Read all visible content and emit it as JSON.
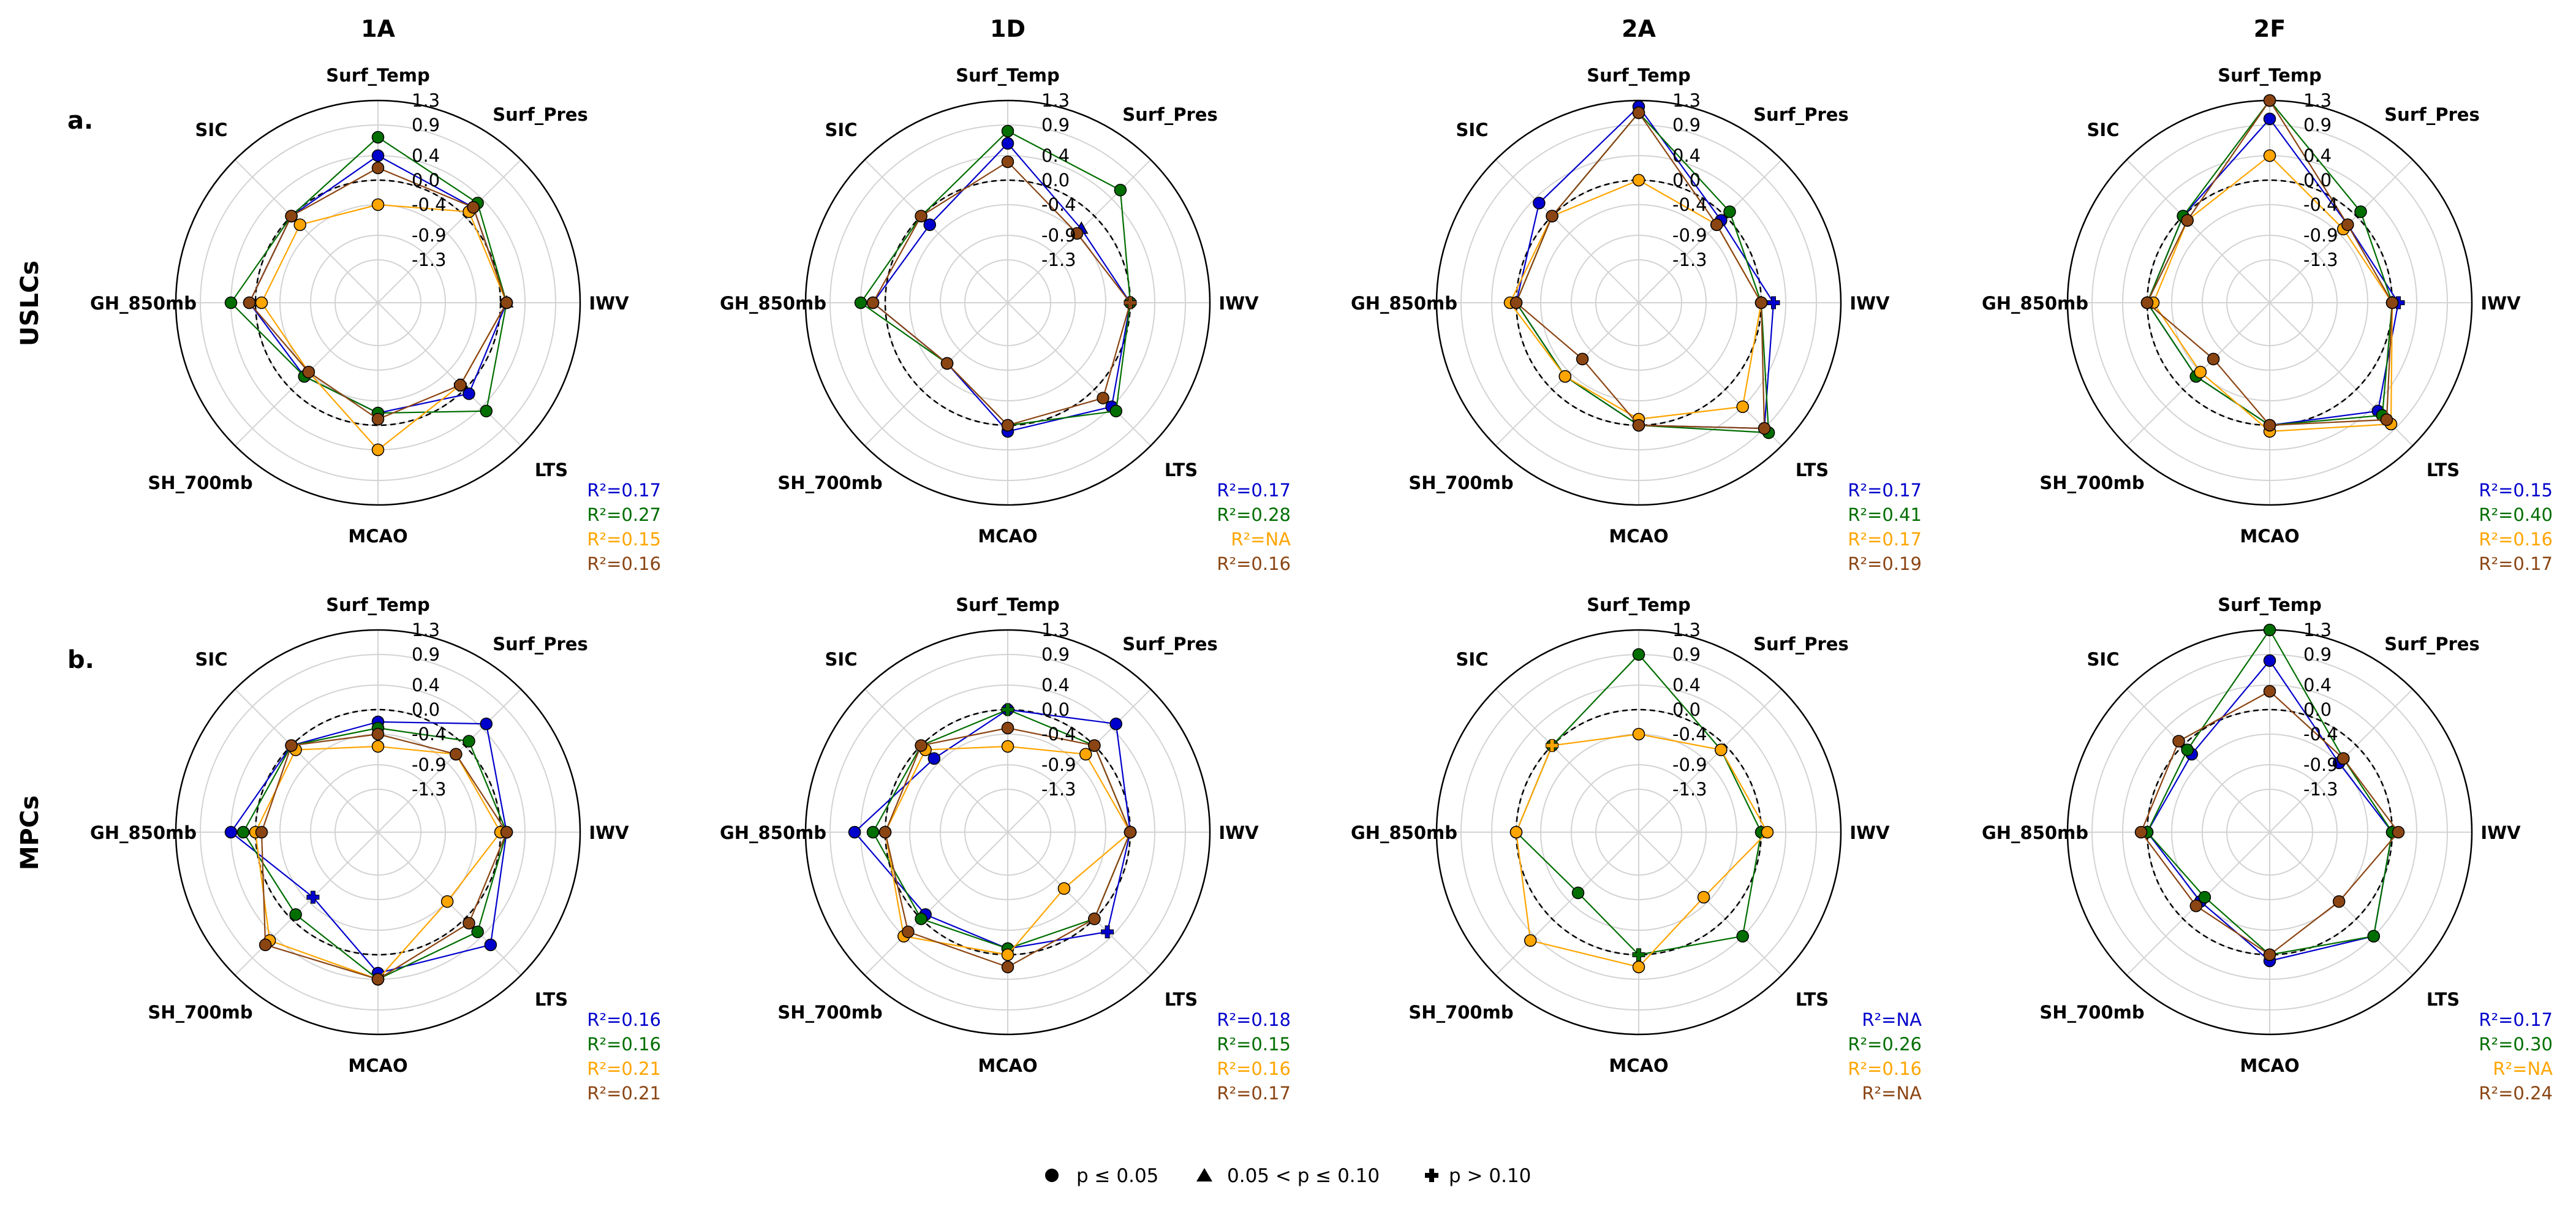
{
  "figure": {
    "columns": [
      "1A",
      "1D",
      "2A",
      "2F"
    ],
    "rows": [
      {
        "panel_label": "a.",
        "row_label": "USLCs"
      },
      {
        "panel_label": "b.",
        "row_label": "MPCs"
      }
    ],
    "legend": [
      {
        "marker": "circle",
        "label": "p ≤ 0.05"
      },
      {
        "marker": "triangle",
        "label": "0.05 < p ≤ 0.10"
      },
      {
        "marker": "plus",
        "label": "p > 0.10"
      }
    ]
  },
  "chart_data": [
    {
      "type": "radar",
      "row": 0,
      "col": 0,
      "title": "1A",
      "axes": [
        "Surf_Temp",
        "Surf_Pres",
        "IWV",
        "LTS",
        "MCAO",
        "SH_700mb",
        "GH_850mb",
        "SIC"
      ],
      "rlim": [
        -2.0,
        1.3
      ],
      "rticks": [
        1.3,
        0.9,
        0.4,
        0.0,
        -0.4,
        -0.9,
        -1.3
      ],
      "reference_ring": 0.0,
      "colors": [
        "#0000cc",
        "#006e00",
        "#ffa500",
        "#8b4513"
      ],
      "series": [
        {
          "values": [
            0.4,
            0.2,
            0.1,
            0.1,
            -0.2,
            -0.3,
            0.1,
            0.0
          ],
          "markers": [
            "circle",
            "circle",
            "triangle",
            "circle",
            "circle",
            "circle",
            "circle",
            "circle"
          ]
        },
        {
          "values": [
            0.7,
            0.3,
            0.1,
            0.5,
            -0.2,
            -0.3,
            0.4,
            0.0
          ],
          "markers": [
            "circle",
            "circle",
            "circle",
            "circle",
            "circle",
            "circle",
            "circle",
            "circle"
          ]
        },
        {
          "values": [
            -0.4,
            0.1,
            0.1,
            -0.1,
            0.4,
            -0.4,
            -0.1,
            -0.2
          ],
          "markers": [
            "circle",
            "circle",
            "circle",
            "plus",
            "circle",
            "circle",
            "circle",
            "circle"
          ]
        },
        {
          "values": [
            0.2,
            0.2,
            0.1,
            -0.1,
            -0.1,
            -0.4,
            0.1,
            0.0
          ],
          "markers": [
            "circle",
            "circle",
            "circle",
            "circle",
            "circle",
            "circle",
            "circle",
            "circle"
          ]
        }
      ],
      "r2": [
        "R²=0.17",
        "R²=0.27",
        "R²=0.15",
        "R²=0.16"
      ]
    },
    {
      "type": "radar",
      "row": 0,
      "col": 1,
      "title": "1D",
      "axes": [
        "Surf_Temp",
        "Surf_Pres",
        "IWV",
        "LTS",
        "MCAO",
        "SH_700mb",
        "GH_850mb",
        "SIC"
      ],
      "rlim": [
        -2.0,
        1.3
      ],
      "rticks": [
        1.3,
        0.9,
        0.4,
        0.0,
        -0.4,
        -0.9,
        -1.3
      ],
      "reference_ring": 0.0,
      "colors": [
        "#0000cc",
        "#006e00",
        "#ffa500",
        "#8b4513"
      ],
      "series": [
        {
          "values": [
            0.6,
            -0.3,
            0.0,
            0.4,
            0.1,
            -0.6,
            0.2,
            -0.2
          ],
          "markers": [
            "circle",
            "triangle",
            "circle",
            "circle",
            "circle",
            "circle",
            "circle",
            "circle"
          ]
        },
        {
          "values": [
            0.8,
            0.6,
            0.0,
            0.5,
            0.0,
            -0.6,
            0.4,
            0.0
          ],
          "markers": [
            "circle",
            "circle",
            "circle",
            "circle",
            "circle",
            "circle",
            "circle",
            "circle"
          ]
        },
        null,
        {
          "values": [
            0.3,
            -0.4,
            0.0,
            0.2,
            0.0,
            -0.6,
            0.2,
            0.0
          ],
          "markers": [
            "circle",
            "circle",
            "plus",
            "circle",
            "circle",
            "circle",
            "circle",
            "circle"
          ]
        }
      ],
      "r2": [
        "R²=0.17",
        "R²=0.28",
        "R²=NA",
        "R²=0.16"
      ]
    },
    {
      "type": "radar",
      "row": 0,
      "col": 2,
      "title": "2A",
      "axes": [
        "Surf_Temp",
        "Surf_Pres",
        "IWV",
        "LTS",
        "MCAO",
        "SH_700mb",
        "GH_850mb",
        "SIC"
      ],
      "rlim": [
        -2.0,
        1.3
      ],
      "rticks": [
        1.3,
        0.9,
        0.4,
        0.0,
        -0.4,
        -0.9,
        -1.3
      ],
      "reference_ring": 0.0,
      "colors": [
        "#0000cc",
        "#006e00",
        "#ffa500",
        "#8b4513"
      ],
      "series": [
        {
          "values": [
            1.2,
            -0.1,
            0.2,
            0.9,
            0.0,
            -0.3,
            0.0,
            0.3
          ],
          "markers": [
            "circle",
            "circle",
            "plus",
            "circle",
            "circle",
            "circle",
            "circle",
            "circle"
          ]
        },
        {
          "values": [
            1.1,
            0.1,
            0.0,
            1.0,
            0.0,
            -0.3,
            0.0,
            0.0
          ],
          "markers": [
            "circle",
            "circle",
            "circle",
            "circle",
            "circle",
            "circle",
            "circle",
            "circle"
          ]
        },
        {
          "values": [
            0.0,
            -0.2,
            0.0,
            0.4,
            -0.1,
            -0.3,
            0.1,
            0.0
          ],
          "markers": [
            "circle",
            "circle",
            "circle",
            "circle",
            "circle",
            "circle",
            "circle",
            "circle"
          ]
        },
        {
          "values": [
            1.1,
            -0.2,
            0.0,
            0.9,
            0.0,
            -0.7,
            0.0,
            0.0
          ],
          "markers": [
            "circle",
            "circle",
            "circle",
            "circle",
            "circle",
            "circle",
            "circle",
            "circle"
          ]
        }
      ],
      "r2": [
        "R²=0.17",
        "R²=0.41",
        "R²=0.17",
        "R²=0.19"
      ]
    },
    {
      "type": "radar",
      "row": 0,
      "col": 3,
      "title": "2F",
      "axes": [
        "Surf_Temp",
        "Surf_Pres",
        "IWV",
        "LTS",
        "MCAO",
        "SH_700mb",
        "GH_850mb",
        "SIC"
      ],
      "rlim": [
        -2.0,
        1.3
      ],
      "rticks": [
        1.3,
        0.9,
        0.4,
        0.0,
        -0.4,
        -0.9,
        -1.3
      ],
      "reference_ring": 0.0,
      "colors": [
        "#0000cc",
        "#006e00",
        "#ffa500",
        "#8b4513"
      ],
      "series": [
        {
          "values": [
            1.0,
            -0.2,
            0.1,
            0.5,
            0.0,
            -0.3,
            0.0,
            0.0
          ],
          "markers": [
            "circle",
            "circle",
            "plus",
            "circle",
            "circle",
            "circle",
            "circle",
            "circle"
          ]
        },
        {
          "values": [
            1.3,
            0.1,
            0.0,
            0.6,
            0.0,
            -0.3,
            0.0,
            0.0
          ],
          "markers": [
            "circle",
            "circle",
            "circle",
            "circle",
            "circle",
            "circle",
            "circle",
            "circle"
          ]
        },
        {
          "values": [
            0.4,
            -0.3,
            0.0,
            0.8,
            0.1,
            -0.4,
            -0.1,
            -0.1
          ],
          "markers": [
            "circle",
            "circle",
            "circle",
            "circle",
            "circle",
            "circle",
            "circle",
            "circle"
          ]
        },
        {
          "values": [
            1.3,
            -0.2,
            0.0,
            0.7,
            0.0,
            -0.7,
            0.0,
            -0.1
          ],
          "markers": [
            "circle",
            "circle",
            "circle",
            "circle",
            "circle",
            "circle",
            "circle",
            "circle"
          ]
        }
      ],
      "r2": [
        "R²=0.15",
        "R²=0.40",
        "R²=0.16",
        "R²=0.17"
      ]
    },
    {
      "type": "radar",
      "row": 1,
      "col": 0,
      "title": "1A",
      "axes": [
        "Surf_Temp",
        "Surf_Pres",
        "IWV",
        "LTS",
        "MCAO",
        "SH_700mb",
        "GH_850mb",
        "SIC"
      ],
      "rlim": [
        -2.0,
        1.3
      ],
      "rticks": [
        1.3,
        0.9,
        0.4,
        0.0,
        -0.4,
        -0.9,
        -1.3
      ],
      "reference_ring": 0.0,
      "colors": [
        "#0000cc",
        "#006e00",
        "#ffa500",
        "#8b4513"
      ],
      "series": [
        {
          "values": [
            -0.2,
            0.5,
            0.1,
            0.6,
            0.3,
            -0.5,
            0.4,
            0.0
          ],
          "markers": [
            "circle",
            "circle",
            "circle",
            "circle",
            "circle",
            "plus",
            "circle",
            "circle"
          ]
        },
        {
          "values": [
            -0.3,
            0.1,
            0.1,
            0.3,
            0.4,
            -0.1,
            0.2,
            0.0
          ],
          "markers": [
            "circle",
            "circle",
            "circle",
            "circle",
            "circle",
            "circle",
            "circle",
            "circle"
          ]
        },
        {
          "values": [
            -0.6,
            -0.2,
            0.0,
            -0.4,
            0.4,
            0.5,
            0.0,
            -0.1
          ],
          "markers": [
            "circle",
            "circle",
            "circle",
            "circle",
            "circle",
            "circle",
            "circle",
            "circle"
          ]
        },
        {
          "values": [
            -0.4,
            -0.2,
            0.1,
            0.1,
            0.4,
            0.6,
            -0.1,
            0.0
          ],
          "markers": [
            "circle",
            "circle",
            "circle",
            "circle",
            "circle",
            "circle",
            "circle",
            "circle"
          ]
        }
      ],
      "r2": [
        "R²=0.16",
        "R²=0.16",
        "R²=0.21",
        "R²=0.21"
      ]
    },
    {
      "type": "radar",
      "row": 1,
      "col": 1,
      "title": "1D",
      "axes": [
        "Surf_Temp",
        "Surf_Pres",
        "IWV",
        "LTS",
        "MCAO",
        "SH_700mb",
        "GH_850mb",
        "SIC"
      ],
      "rlim": [
        -2.0,
        1.3
      ],
      "rticks": [
        1.3,
        0.9,
        0.4,
        0.0,
        -0.4,
        -0.9,
        -1.3
      ],
      "reference_ring": 0.0,
      "colors": [
        "#0000cc",
        "#006e00",
        "#ffa500",
        "#8b4513"
      ],
      "series": [
        {
          "values": [
            0.0,
            0.5,
            0.0,
            0.3,
            -0.1,
            -0.1,
            0.5,
            -0.3
          ],
          "markers": [
            "circle",
            "circle",
            "circle",
            "plus",
            "circle",
            "circle",
            "circle",
            "circle"
          ]
        },
        {
          "values": [
            0.0,
            0.0,
            0.0,
            0.0,
            -0.1,
            0.0,
            0.2,
            0.0
          ],
          "markers": [
            "plus",
            "circle",
            "circle",
            "circle",
            "circle",
            "circle",
            "circle",
            "circle"
          ]
        },
        {
          "values": [
            -0.6,
            -0.2,
            0.0,
            -0.7,
            0.0,
            0.4,
            0.0,
            -0.1
          ],
          "markers": [
            "circle",
            "circle",
            "circle",
            "circle",
            "circle",
            "circle",
            "circle",
            "circle"
          ]
        },
        {
          "values": [
            -0.3,
            0.0,
            0.0,
            0.0,
            0.2,
            0.3,
            0.0,
            0.0
          ],
          "markers": [
            "circle",
            "circle",
            "circle",
            "circle",
            "circle",
            "circle",
            "circle",
            "circle"
          ]
        }
      ],
      "r2": [
        "R²=0.18",
        "R²=0.15",
        "R²=0.16",
        "R²=0.17"
      ]
    },
    {
      "type": "radar",
      "row": 1,
      "col": 2,
      "title": "2A",
      "axes": [
        "Surf_Temp",
        "Surf_Pres",
        "IWV",
        "LTS",
        "MCAO",
        "SH_700mb",
        "GH_850mb",
        "SIC"
      ],
      "rlim": [
        -2.0,
        1.3
      ],
      "rticks": [
        1.3,
        0.9,
        0.4,
        0.0,
        -0.4,
        -0.9,
        -1.3
      ],
      "reference_ring": 0.0,
      "colors": [
        "#0000cc",
        "#006e00",
        "#ffa500",
        "#8b4513"
      ],
      "series": [
        null,
        {
          "values": [
            0.9,
            -0.1,
            0.0,
            0.4,
            0.0,
            -0.6,
            0.0,
            0.0
          ],
          "markers": [
            "circle",
            "circle",
            "circle",
            "circle",
            "plus",
            "circle",
            "circle",
            "circle"
          ]
        },
        {
          "values": [
            -0.4,
            -0.1,
            0.1,
            -0.5,
            0.2,
            0.5,
            0.0,
            0.0
          ],
          "markers": [
            "circle",
            "circle",
            "circle",
            "circle",
            "circle",
            "circle",
            "circle",
            "plus"
          ]
        },
        null
      ],
      "r2": [
        "R²=NA",
        "R²=0.26",
        "R²=0.16",
        "R²=NA"
      ]
    },
    {
      "type": "radar",
      "row": 1,
      "col": 3,
      "title": "2F",
      "axes": [
        "Surf_Temp",
        "Surf_Pres",
        "IWV",
        "LTS",
        "MCAO",
        "SH_700mb",
        "GH_850mb",
        "SIC"
      ],
      "rlim": [
        -2.0,
        1.3
      ],
      "rticks": [
        1.3,
        0.9,
        0.4,
        0.0,
        -0.4,
        -0.9,
        -1.3
      ],
      "reference_ring": 0.0,
      "colors": [
        "#0000cc",
        "#006e00",
        "#ffa500",
        "#8b4513"
      ],
      "series": [
        {
          "values": [
            0.8,
            -0.4,
            0.0,
            0.4,
            0.1,
            -0.4,
            0.0,
            -0.2
          ],
          "markers": [
            "circle",
            "circle",
            "circle",
            "circle",
            "circle",
            "circle",
            "circle",
            "circle"
          ]
        },
        {
          "values": [
            1.3,
            -0.3,
            0.0,
            0.4,
            0.0,
            -0.5,
            0.0,
            -0.1
          ],
          "markers": [
            "circle",
            "circle",
            "circle",
            "circle",
            "circle",
            "circle",
            "circle",
            "circle"
          ]
        },
        null,
        {
          "values": [
            0.3,
            -0.3,
            0.1,
            -0.4,
            0.0,
            -0.3,
            0.1,
            0.1
          ],
          "markers": [
            "circle",
            "circle",
            "circle",
            "circle",
            "circle",
            "circle",
            "circle",
            "circle"
          ]
        }
      ],
      "r2": [
        "R²=0.17",
        "R²=0.30",
        "R²=NA",
        "R²=0.24"
      ]
    }
  ]
}
